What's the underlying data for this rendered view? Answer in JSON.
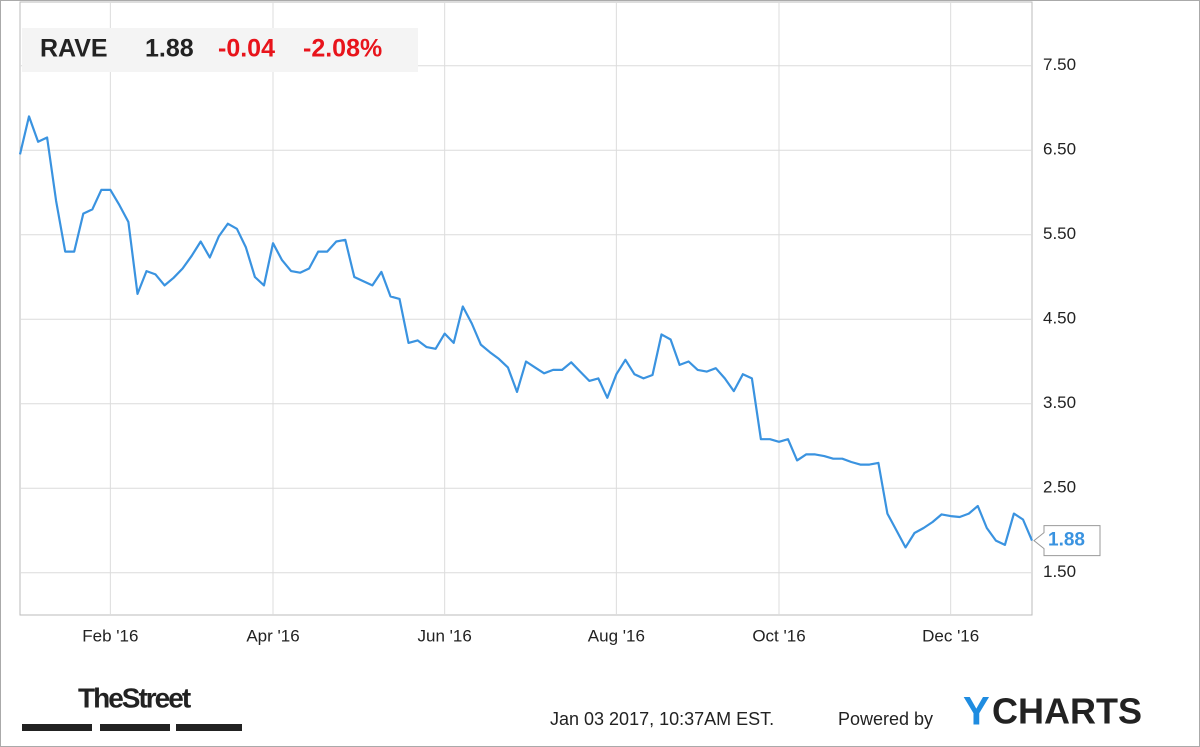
{
  "chart_data": {
    "type": "line",
    "ticker": "RAVE",
    "price": "1.88",
    "change": "-0.04",
    "change_pct": "-2.08%",
    "timestamp": "Jan 03 2017, 10:37AM EST.",
    "powered_by": "Powered by",
    "brand_y": "Y",
    "brand_rest": "CHARTS",
    "publisher": "TheStreet",
    "categories": [
      null,
      null,
      null,
      null,
      null,
      null,
      null,
      null,
      null,
      null,
      "Feb '16",
      null,
      null,
      null,
      null,
      null,
      null,
      null,
      null,
      null,
      null,
      null,
      null,
      null,
      null,
      null,
      null,
      null,
      "Apr '16",
      null,
      null,
      null,
      null,
      null,
      null,
      null,
      null,
      null,
      null,
      null,
      null,
      null,
      null,
      null,
      null,
      null,
      null,
      "Jun '16",
      null,
      null,
      null,
      null,
      null,
      null,
      null,
      null,
      null,
      null,
      null,
      null,
      null,
      null,
      null,
      null,
      null,
      null,
      "Aug '16",
      null,
      null,
      null,
      null,
      null,
      null,
      null,
      null,
      null,
      null,
      null,
      null,
      null,
      null,
      null,
      null,
      null,
      "Oct '16",
      null,
      null,
      null,
      null,
      null,
      null,
      null,
      null,
      null,
      null,
      null,
      null,
      null,
      null,
      null,
      null,
      null,
      null,
      "Dec '16",
      null,
      null,
      null,
      null,
      null,
      null,
      null,
      null,
      null
    ],
    "series": [
      {
        "name": "RAVE",
        "color": "#3a93e0",
        "values": [
          6.45,
          6.9,
          6.6,
          6.65,
          5.9,
          5.3,
          5.3,
          5.75,
          5.8,
          6.03,
          6.03,
          5.85,
          5.65,
          4.8,
          5.07,
          5.03,
          4.9,
          4.99,
          5.1,
          5.25,
          5.42,
          5.23,
          5.48,
          5.63,
          5.57,
          5.35,
          5.0,
          4.9,
          5.4,
          5.2,
          5.07,
          5.05,
          5.1,
          5.3,
          5.3,
          5.42,
          5.44,
          5.0,
          4.95,
          4.9,
          5.06,
          4.77,
          4.74,
          4.22,
          4.25,
          4.17,
          4.15,
          4.33,
          4.22,
          4.65,
          4.45,
          4.2,
          4.11,
          4.03,
          3.93,
          3.64,
          4.0,
          3.93,
          3.86,
          3.9,
          3.9,
          3.99,
          3.88,
          3.77,
          3.8,
          3.57,
          3.85,
          4.02,
          3.85,
          3.8,
          3.84,
          4.32,
          4.26,
          3.96,
          4.0,
          3.9,
          3.88,
          3.92,
          3.8,
          3.65,
          3.85,
          3.8,
          3.08,
          3.08,
          3.05,
          3.08,
          2.83,
          2.9,
          2.9,
          2.88,
          2.85,
          2.85,
          2.81,
          2.78,
          2.78,
          2.8,
          2.2,
          2.0,
          1.8,
          1.97,
          2.03,
          2.1,
          2.19,
          2.17,
          2.16,
          2.2,
          2.29,
          2.03,
          1.88,
          1.83,
          2.2,
          2.13,
          1.88
        ]
      }
    ],
    "ylim": [
      1.0,
      8.1
    ],
    "yticks": [
      {
        "value": 1.5,
        "label": "1.50"
      },
      {
        "value": 2.5,
        "label": "2.50"
      },
      {
        "value": 3.5,
        "label": "3.50"
      },
      {
        "value": 4.5,
        "label": "4.50"
      },
      {
        "value": 5.5,
        "label": "5.50"
      },
      {
        "value": 6.5,
        "label": "6.50"
      },
      {
        "value": 7.5,
        "label": "7.50"
      }
    ],
    "grid": true
  }
}
